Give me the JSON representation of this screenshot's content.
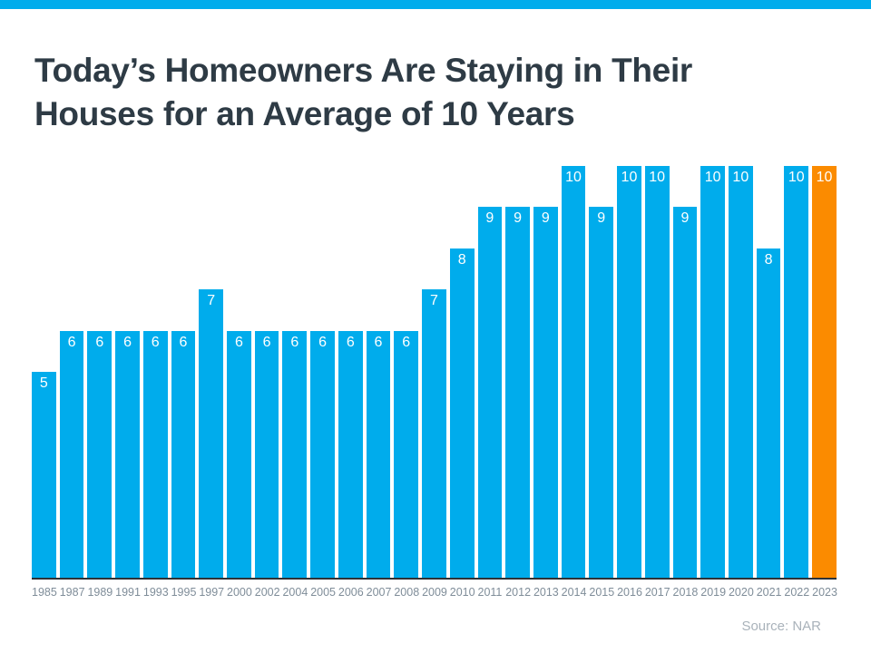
{
  "page": {
    "title_line1": "Today’s Homeowners Are Staying in Their",
    "title_line2": "Houses for an Average of 10 Years",
    "source": "Source: NAR"
  },
  "colors": {
    "accent_blue": "#00ACEC",
    "highlight_orange": "#FB8B00",
    "title_text": "#2E3B45",
    "axis_line": "#2D3237",
    "year_label_text": "#7F8D99",
    "source_text": "#A9B2BA",
    "value_label_text": "#FFFFFF",
    "background": "#FFFFFF"
  },
  "chart_data": {
    "type": "bar",
    "title": "Today’s Homeowners Are Staying in Their Houses for an Average of 10 Years",
    "categories": [
      "1985",
      "1987",
      "1989",
      "1991",
      "1993",
      "1995",
      "1997",
      "2000",
      "2002",
      "2004",
      "2005",
      "2006",
      "2007",
      "2008",
      "2009",
      "2010",
      "2011",
      "2012",
      "2013",
      "2014",
      "2015",
      "2016",
      "2017",
      "2018",
      "2019",
      "2020",
      "2021",
      "2022",
      "2023"
    ],
    "values": [
      5,
      6,
      6,
      6,
      6,
      6,
      7,
      6,
      6,
      6,
      6,
      6,
      6,
      6,
      7,
      8,
      9,
      9,
      9,
      10,
      9,
      10,
      10,
      9,
      10,
      10,
      8,
      10,
      10
    ],
    "unit": "years",
    "xlabel": "",
    "ylabel": "",
    "ylim": [
      0,
      10
    ],
    "grid": false,
    "legend": false,
    "value_labels_shown": true,
    "bar_color": "#00ACEC",
    "highlight_index": 28,
    "highlight_color": "#FB8B00",
    "source": "Source: NAR"
  }
}
